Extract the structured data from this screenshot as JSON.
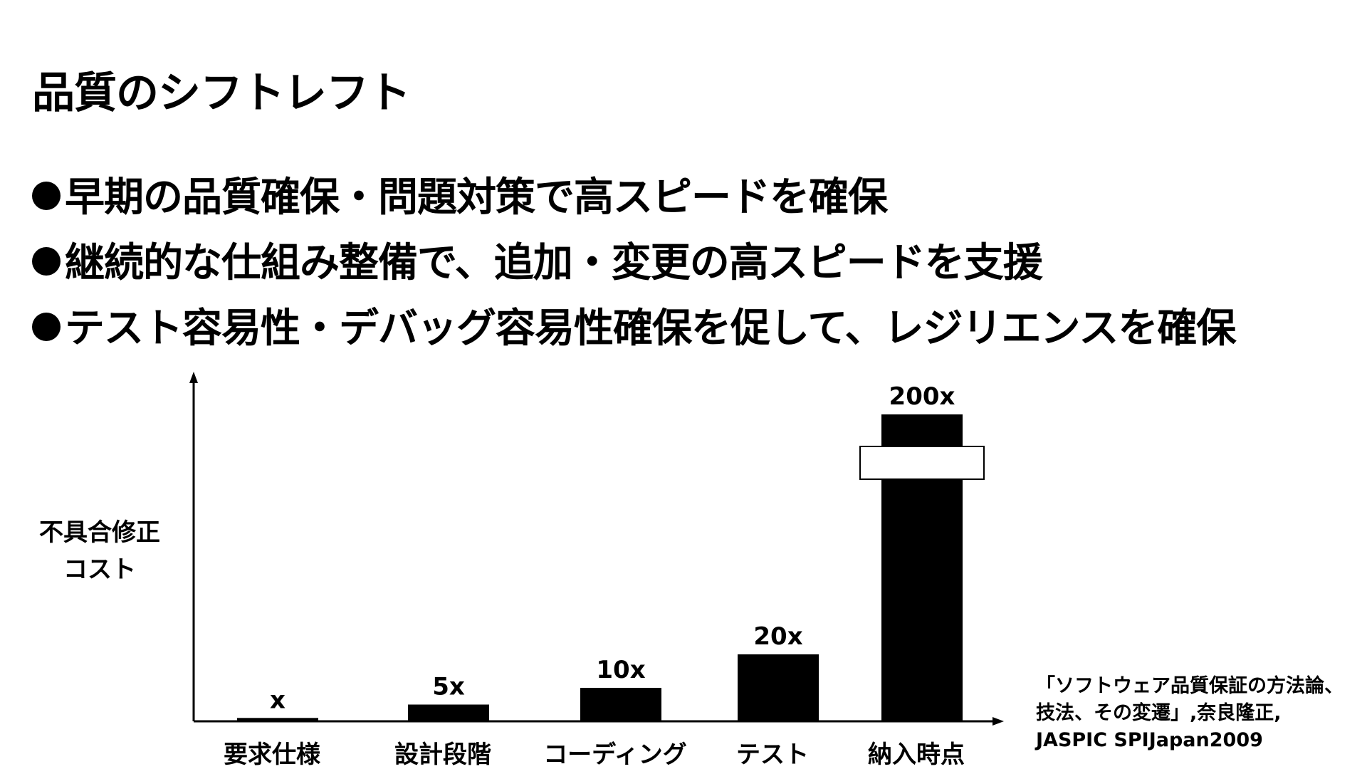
{
  "slide": {
    "title": "品質のシフトレフト",
    "bullets": [
      "早期の品質確保・問題対策で高スピードを確保",
      "継続的な仕組み整備で、追加・変更の高スピードを支援",
      "テスト容易性・デバッグ容易性確保を促して、レジリエンスを確保"
    ],
    "source_lines": [
      "「ソフトウェア品質保証の方法論、",
      "技法、その変遷」,奈良隆正,",
      "JASPIC SPIJapan2009"
    ]
  },
  "chart_data": {
    "type": "bar",
    "categories": [
      "要求仕様",
      "設計段階",
      "コーディング",
      "テスト",
      "納入時点"
    ],
    "values": [
      1,
      5,
      10,
      20,
      200
    ],
    "data_labels": [
      "x",
      "5x",
      "10x",
      "20x",
      "200x"
    ],
    "ylabel_lines": [
      "不具合修正",
      "コスト"
    ],
    "xlabel": "",
    "axis_break_on": "納入時点",
    "grid": false,
    "legend": "none",
    "colors": {
      "bar": "#000000",
      "axis": "#000000",
      "break": "#ffffff"
    }
  }
}
